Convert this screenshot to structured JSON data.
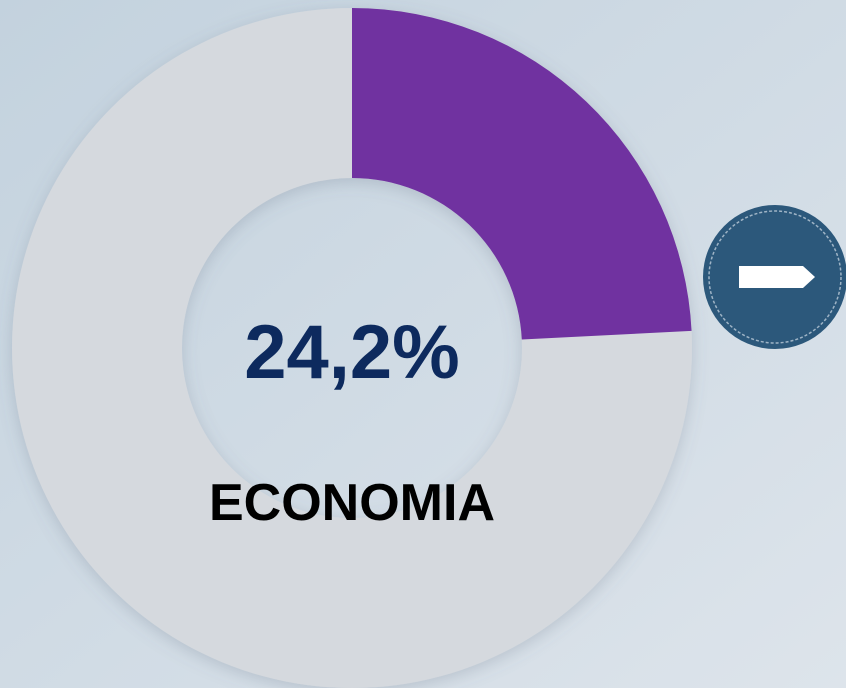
{
  "chart_data": {
    "type": "donut",
    "categories": [
      "ECONOMIA"
    ],
    "values": [
      24.2
    ],
    "value_labels": [
      "24,2%"
    ],
    "color": "#7030a0"
  }
}
